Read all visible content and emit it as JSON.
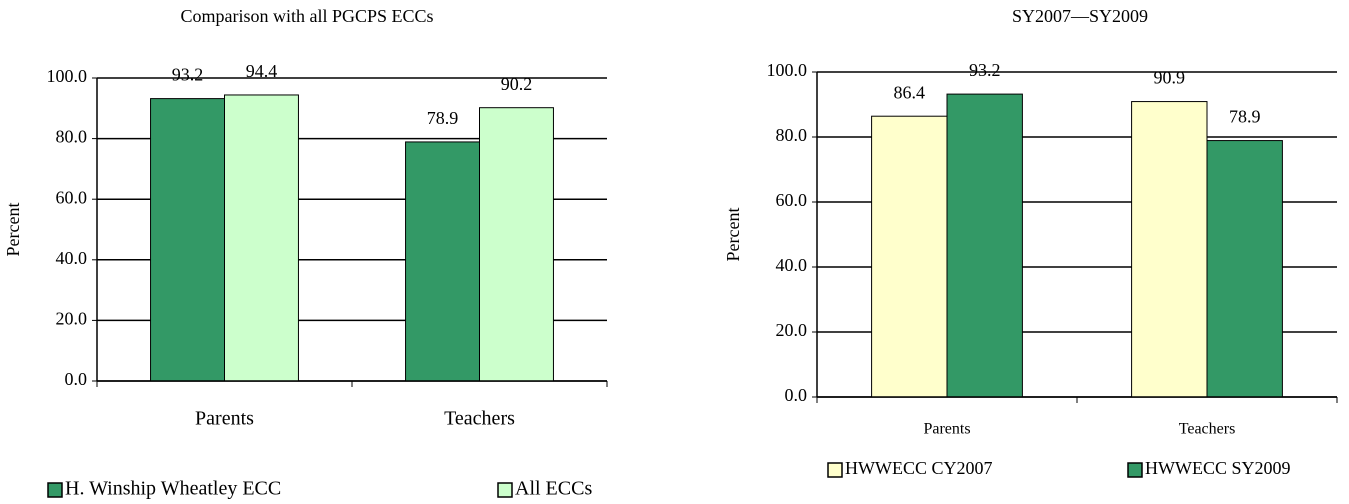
{
  "chart_data": [
    {
      "type": "bar",
      "title": "Comparison with all PGCPS ECCs",
      "y_label": "Percent",
      "categories": [
        "Parents",
        "Teachers"
      ],
      "series": [
        {
          "name": "H. Winship Wheatley ECC",
          "color": "#339966",
          "values": [
            93.2,
            78.9
          ]
        },
        {
          "name": "All ECCs",
          "color": "#ccffcc",
          "values": [
            94.4,
            90.2
          ]
        }
      ],
      "ylim": [
        0,
        100
      ],
      "yticks": [
        {
          "value": 0,
          "label": "0.0"
        },
        {
          "value": 20,
          "label": "20.0"
        },
        {
          "value": 40,
          "label": "40.0"
        },
        {
          "value": 60,
          "label": "60.0"
        },
        {
          "value": 80,
          "label": "80.0"
        },
        {
          "value": 100,
          "label": "100.0"
        }
      ],
      "grid": true,
      "legend": "bottom"
    },
    {
      "type": "bar",
      "title": "SY2007—SY2009",
      "y_label": "Percent",
      "categories": [
        "Parents",
        "Teachers"
      ],
      "series": [
        {
          "name": "HWWECC CY2007",
          "color": "#ffffcc",
          "values": [
            86.4,
            90.9
          ]
        },
        {
          "name": "HWWECC SY2009",
          "color": "#339966",
          "values": [
            93.2,
            78.9
          ]
        }
      ],
      "ylim": [
        0,
        100
      ],
      "yticks": [
        {
          "value": 0,
          "label": "0.0"
        },
        {
          "value": 20,
          "label": "20.0"
        },
        {
          "value": 40,
          "label": "40.0"
        },
        {
          "value": 60,
          "label": "60.0"
        },
        {
          "value": 80,
          "label": "80.0"
        },
        {
          "value": 100,
          "label": "100.0"
        }
      ],
      "grid": true,
      "legend": "bottom"
    }
  ]
}
